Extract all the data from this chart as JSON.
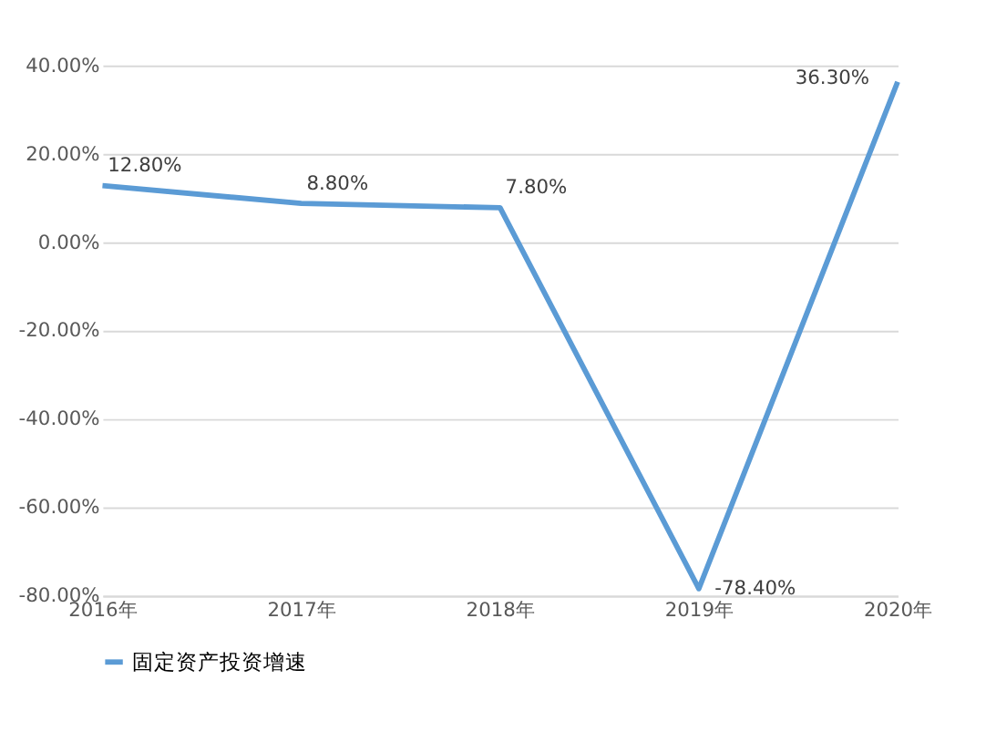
{
  "chart_data": {
    "type": "line",
    "categories": [
      "2016年",
      "2017年",
      "2018年",
      "2019年",
      "2020年"
    ],
    "series": [
      {
        "name": "固定资产投资增速",
        "color": "#5b9bd5",
        "values": [
          12.8,
          8.8,
          7.8,
          -78.4,
          36.3
        ],
        "value_labels": [
          "12.80%",
          "8.80%",
          "7.80%",
          "-78.40%",
          "36.30%"
        ]
      }
    ],
    "ylim": [
      -80,
      40
    ],
    "yticks": [
      {
        "value": -80,
        "label": "-80.00%"
      },
      {
        "value": -60,
        "label": "-60.00%"
      },
      {
        "value": -40,
        "label": "-40.00%"
      },
      {
        "value": -20,
        "label": "-20.00%"
      },
      {
        "value": 0,
        "label": "0.00%"
      },
      {
        "value": 20,
        "label": "20.00%"
      },
      {
        "value": 40,
        "label": "40.00%"
      }
    ],
    "grid": "y",
    "legend": "bottom",
    "marker": "none",
    "line_style": "solid"
  }
}
